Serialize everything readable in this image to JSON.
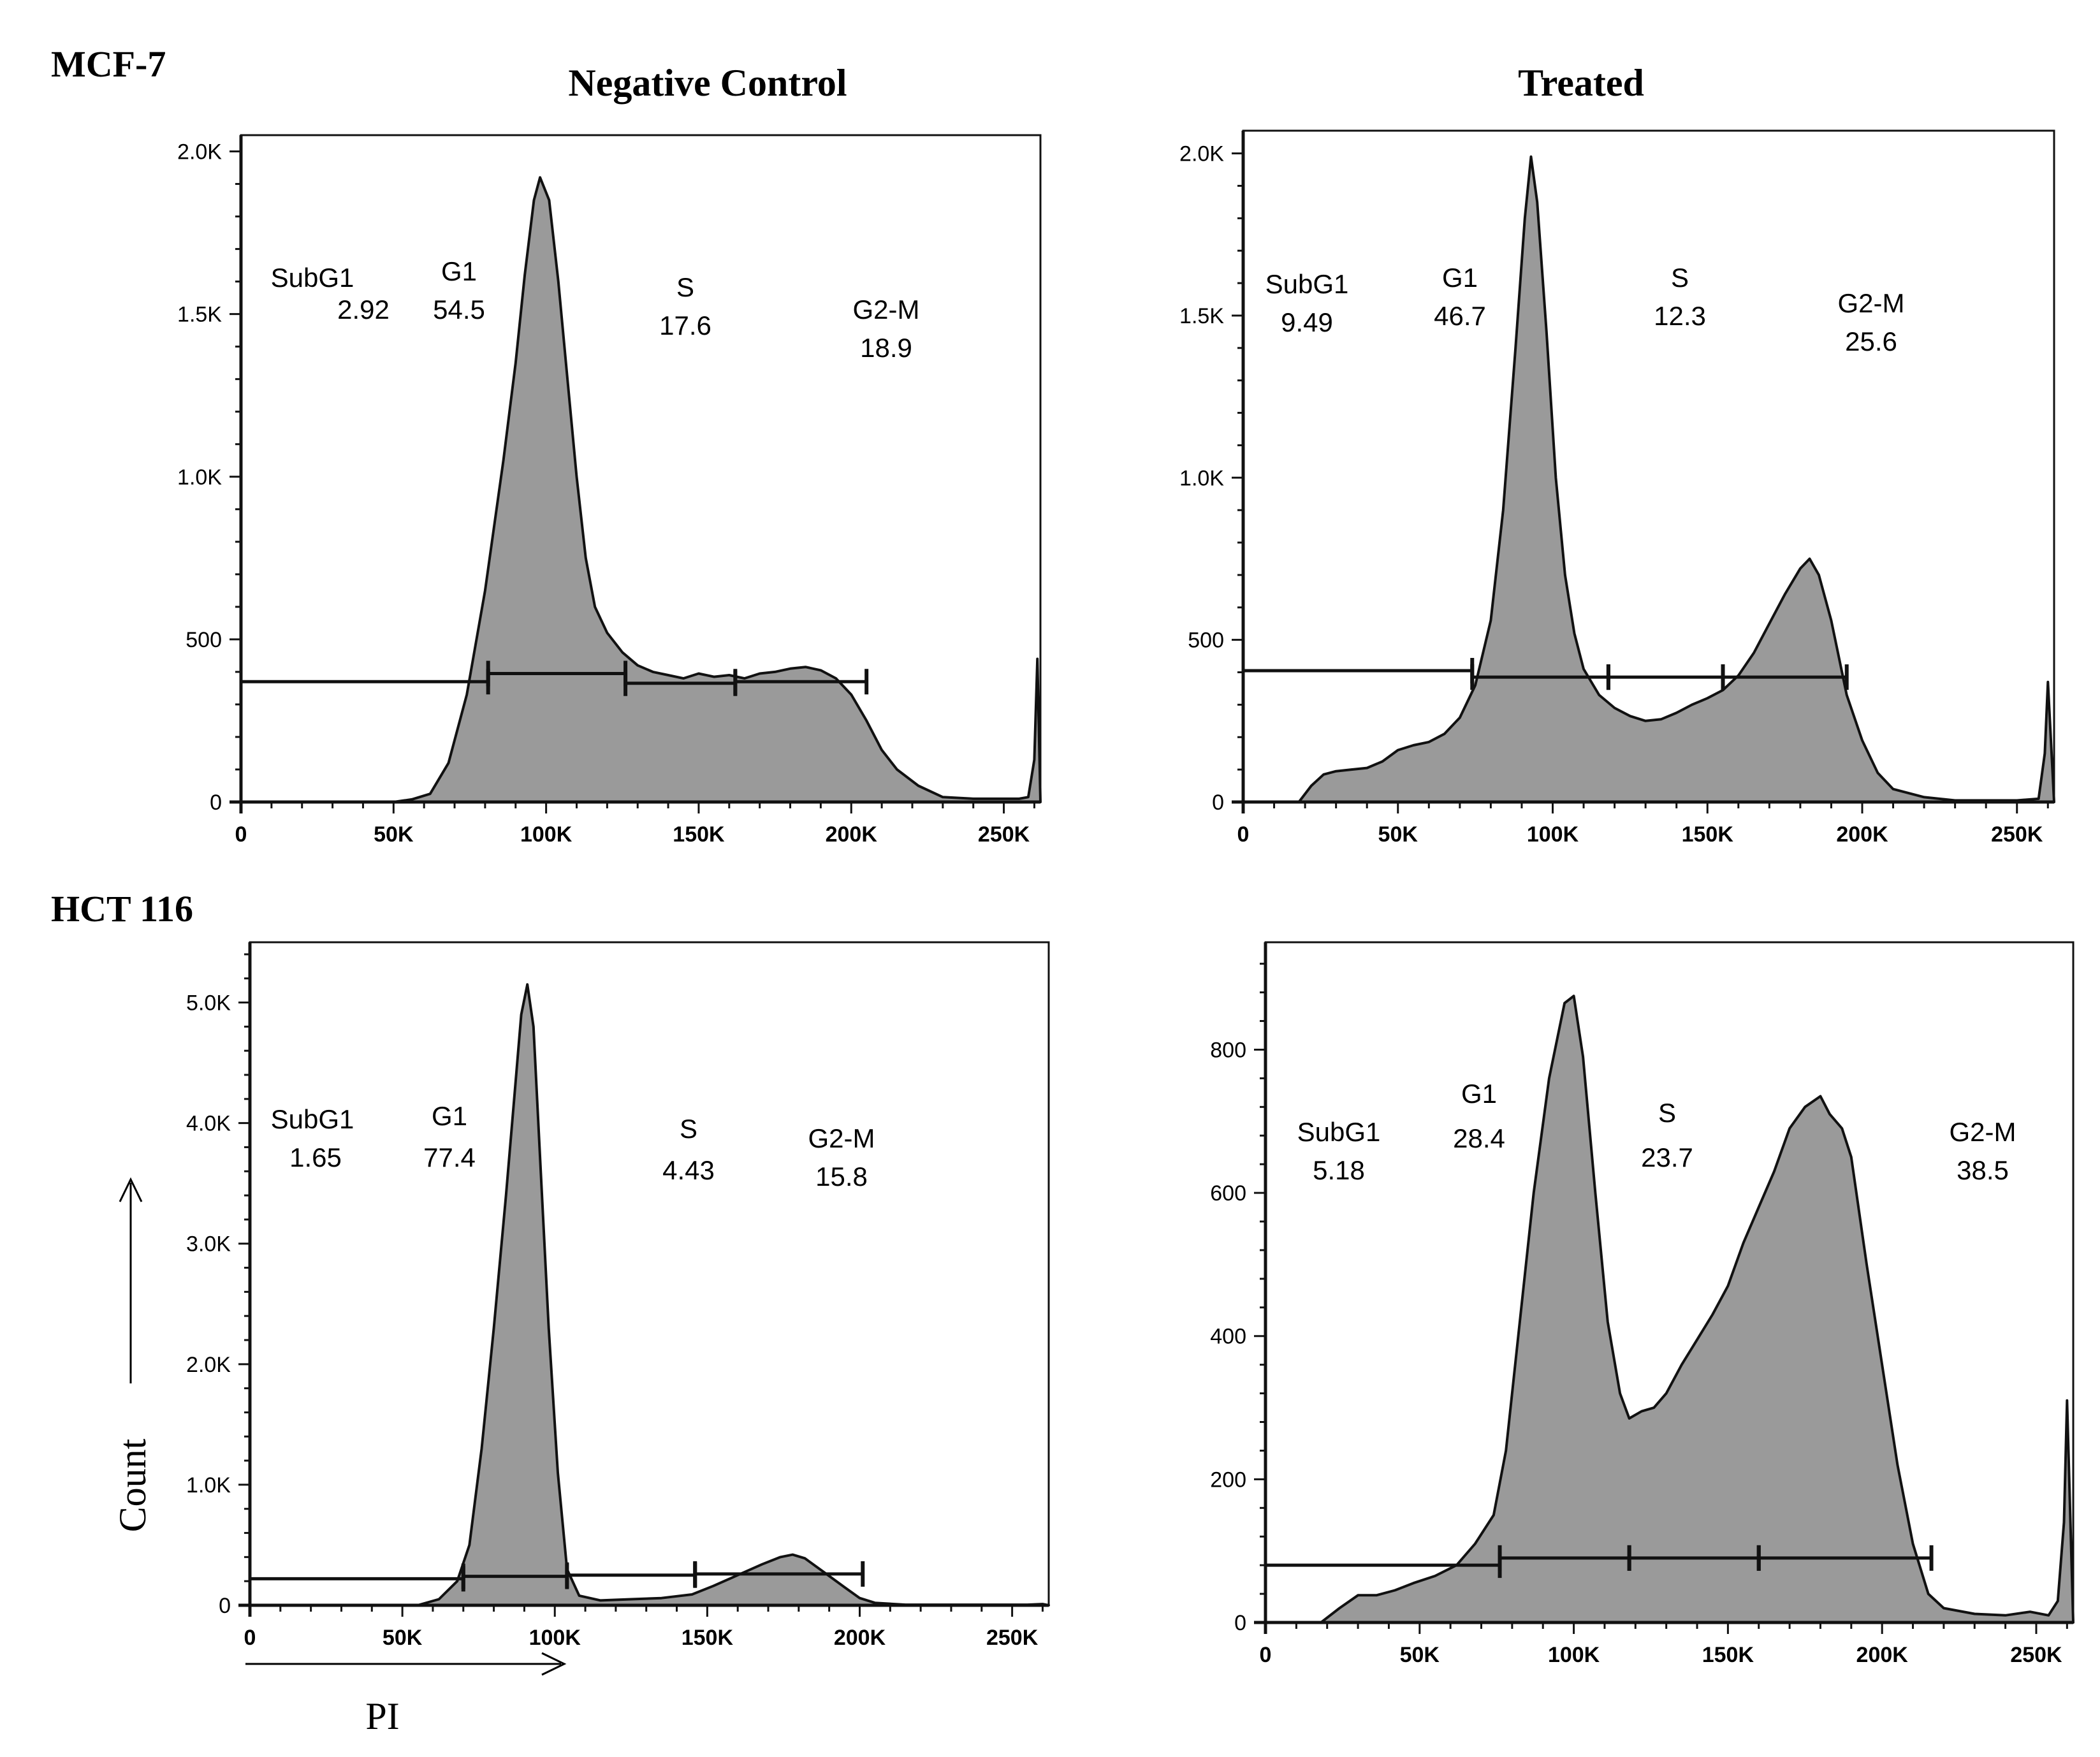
{
  "figure": {
    "row_labels": [
      "MCF-7",
      "HCT 116"
    ],
    "column_titles": [
      "Negative Control",
      "Treated"
    ],
    "y_axis_label": "Count",
    "x_axis_label": "PI"
  },
  "colors": {
    "fill": "#9a9a9a",
    "stroke": "#111111",
    "text": "#000000"
  },
  "chart_data": [
    {
      "type": "area",
      "cell_line": "MCF-7",
      "condition": "Negative Control",
      "xlim": [
        0,
        262000
      ],
      "ylim": [
        0,
        2050
      ],
      "x_ticks": [
        0,
        50000,
        100000,
        150000,
        200000,
        250000
      ],
      "x_tick_labels": [
        "0",
        "50K",
        "100K",
        "150K",
        "200K",
        "250K"
      ],
      "y_ticks": [
        0,
        500,
        1000,
        1500,
        2000
      ],
      "y_tick_labels": [
        "0",
        "500",
        "1.0K",
        "1.5K",
        "2.0K"
      ],
      "histogram": [
        [
          0,
          0
        ],
        [
          50000,
          0
        ],
        [
          56000,
          8
        ],
        [
          62000,
          25
        ],
        [
          68000,
          120
        ],
        [
          74000,
          330
        ],
        [
          80000,
          650
        ],
        [
          86000,
          1050
        ],
        [
          90000,
          1350
        ],
        [
          93000,
          1620
        ],
        [
          96000,
          1850
        ],
        [
          98000,
          1920
        ],
        [
          101000,
          1850
        ],
        [
          104000,
          1600
        ],
        [
          107000,
          1300
        ],
        [
          110000,
          1000
        ],
        [
          113000,
          750
        ],
        [
          116000,
          600
        ],
        [
          120000,
          520
        ],
        [
          125000,
          460
        ],
        [
          130000,
          420
        ],
        [
          135000,
          400
        ],
        [
          140000,
          390
        ],
        [
          145000,
          380
        ],
        [
          150000,
          395
        ],
        [
          155000,
          385
        ],
        [
          160000,
          390
        ],
        [
          165000,
          380
        ],
        [
          170000,
          395
        ],
        [
          175000,
          400
        ],
        [
          180000,
          410
        ],
        [
          185000,
          415
        ],
        [
          190000,
          405
        ],
        [
          195000,
          380
        ],
        [
          200000,
          330
        ],
        [
          205000,
          250
        ],
        [
          210000,
          160
        ],
        [
          215000,
          100
        ],
        [
          222000,
          50
        ],
        [
          230000,
          15
        ],
        [
          240000,
          10
        ],
        [
          255000,
          10
        ],
        [
          258000,
          15
        ],
        [
          260000,
          130
        ],
        [
          261000,
          440
        ],
        [
          262000,
          0
        ]
      ],
      "gates": [
        {
          "name": "SubG1",
          "value": "2.92",
          "range": [
            0,
            81000
          ],
          "y": 370
        },
        {
          "name": "G1",
          "value": "54.5",
          "range": [
            81000,
            126000
          ],
          "y": 395
        },
        {
          "name": "S",
          "value": "17.6",
          "range": [
            126000,
            162000
          ],
          "y": 365
        },
        {
          "name": "G2-M",
          "value": "18.9",
          "range": [
            162000,
            205000
          ],
          "y": 370
        }
      ]
    },
    {
      "type": "area",
      "cell_line": "MCF-7",
      "condition": "Treated",
      "xlim": [
        0,
        262000
      ],
      "ylim": [
        0,
        2070
      ],
      "x_ticks": [
        0,
        50000,
        100000,
        150000,
        200000,
        250000
      ],
      "x_tick_labels": [
        "0",
        "50K",
        "100K",
        "150K",
        "200K",
        "250K"
      ],
      "y_ticks": [
        0,
        500,
        1000,
        1500,
        2000
      ],
      "y_tick_labels": [
        "0",
        "500",
        "1.0K",
        "1.5K",
        "2.0K"
      ],
      "histogram": [
        [
          0,
          0
        ],
        [
          18000,
          0
        ],
        [
          22000,
          50
        ],
        [
          26000,
          85
        ],
        [
          30000,
          95
        ],
        [
          35000,
          100
        ],
        [
          40000,
          105
        ],
        [
          45000,
          125
        ],
        [
          50000,
          160
        ],
        [
          55000,
          175
        ],
        [
          60000,
          185
        ],
        [
          65000,
          210
        ],
        [
          70000,
          260
        ],
        [
          75000,
          360
        ],
        [
          80000,
          560
        ],
        [
          84000,
          900
        ],
        [
          88000,
          1400
        ],
        [
          91000,
          1800
        ],
        [
          93000,
          1990
        ],
        [
          95000,
          1850
        ],
        [
          98000,
          1450
        ],
        [
          101000,
          1000
        ],
        [
          104000,
          700
        ],
        [
          107000,
          520
        ],
        [
          110000,
          410
        ],
        [
          115000,
          330
        ],
        [
          120000,
          290
        ],
        [
          125000,
          265
        ],
        [
          130000,
          250
        ],
        [
          135000,
          255
        ],
        [
          140000,
          275
        ],
        [
          145000,
          300
        ],
        [
          150000,
          320
        ],
        [
          155000,
          345
        ],
        [
          160000,
          390
        ],
        [
          165000,
          460
        ],
        [
          170000,
          550
        ],
        [
          175000,
          640
        ],
        [
          180000,
          720
        ],
        [
          183000,
          750
        ],
        [
          186000,
          700
        ],
        [
          190000,
          560
        ],
        [
          195000,
          330
        ],
        [
          200000,
          190
        ],
        [
          205000,
          90
        ],
        [
          210000,
          40
        ],
        [
          220000,
          15
        ],
        [
          230000,
          5
        ],
        [
          250000,
          5
        ],
        [
          257000,
          10
        ],
        [
          259000,
          150
        ],
        [
          260000,
          370
        ],
        [
          262000,
          0
        ]
      ],
      "gates": [
        {
          "name": "SubG1",
          "value": "9.49",
          "range": [
            0,
            74000
          ],
          "y": 405
        },
        {
          "name": "G1",
          "value": "46.7",
          "range": [
            74000,
            118000
          ],
          "y": 385
        },
        {
          "name": "S",
          "value": "12.3",
          "range": [
            118000,
            155000
          ],
          "y": 385
        },
        {
          "name": "G2-M",
          "value": "25.6",
          "range": [
            155000,
            195000
          ],
          "y": 385
        }
      ]
    },
    {
      "type": "area",
      "cell_line": "HCT 116",
      "condition": "Negative Control",
      "xlim": [
        0,
        262000
      ],
      "ylim": [
        0,
        5500
      ],
      "x_ticks": [
        0,
        50000,
        100000,
        150000,
        200000,
        250000
      ],
      "x_tick_labels": [
        "0",
        "50K",
        "100K",
        "150K",
        "200K",
        "250K"
      ],
      "y_ticks": [
        0,
        1000,
        2000,
        3000,
        4000,
        5000
      ],
      "y_tick_labels": [
        "0",
        "1.0K",
        "2.0K",
        "3.0K",
        "4.0K",
        "5.0K"
      ],
      "histogram": [
        [
          0,
          0
        ],
        [
          55000,
          0
        ],
        [
          62000,
          50
        ],
        [
          68000,
          200
        ],
        [
          72000,
          500
        ],
        [
          76000,
          1300
        ],
        [
          80000,
          2300
        ],
        [
          84000,
          3400
        ],
        [
          87000,
          4300
        ],
        [
          89000,
          4900
        ],
        [
          91000,
          5150
        ],
        [
          93000,
          4800
        ],
        [
          95000,
          3800
        ],
        [
          98000,
          2300
        ],
        [
          101000,
          1100
        ],
        [
          104000,
          300
        ],
        [
          108000,
          80
        ],
        [
          115000,
          40
        ],
        [
          125000,
          50
        ],
        [
          135000,
          60
        ],
        [
          145000,
          90
        ],
        [
          152000,
          160
        ],
        [
          160000,
          250
        ],
        [
          168000,
          340
        ],
        [
          174000,
          400
        ],
        [
          178000,
          420
        ],
        [
          182000,
          390
        ],
        [
          188000,
          280
        ],
        [
          195000,
          150
        ],
        [
          200000,
          60
        ],
        [
          205000,
          20
        ],
        [
          215000,
          5
        ],
        [
          230000,
          5
        ],
        [
          255000,
          5
        ],
        [
          260000,
          10
        ],
        [
          262000,
          0
        ]
      ],
      "gates": [
        {
          "name": "SubG1",
          "value": "1.65",
          "range": [
            0,
            70000
          ],
          "y": 220
        },
        {
          "name": "G1",
          "value": "77.4",
          "range": [
            70000,
            104000
          ],
          "y": 240
        },
        {
          "name": "S",
          "value": "4.43",
          "range": [
            104000,
            146000
          ],
          "y": 250
        },
        {
          "name": "G2-M",
          "value": "15.8",
          "range": [
            146000,
            201000
          ],
          "y": 260
        }
      ]
    },
    {
      "type": "area",
      "cell_line": "HCT 116",
      "condition": "Treated",
      "xlim": [
        0,
        262000
      ],
      "ylim": [
        0,
        950
      ],
      "x_ticks": [
        0,
        50000,
        100000,
        150000,
        200000,
        250000
      ],
      "x_tick_labels": [
        "0",
        "50K",
        "100K",
        "150K",
        "200K",
        "250K"
      ],
      "y_ticks": [
        0,
        200,
        400,
        600,
        800
      ],
      "y_tick_labels": [
        "0",
        "200",
        "400",
        "600",
        "800"
      ],
      "histogram": [
        [
          0,
          0
        ],
        [
          18000,
          0
        ],
        [
          24000,
          20
        ],
        [
          30000,
          38
        ],
        [
          36000,
          38
        ],
        [
          42000,
          45
        ],
        [
          48000,
          55
        ],
        [
          55000,
          65
        ],
        [
          62000,
          80
        ],
        [
          68000,
          110
        ],
        [
          74000,
          150
        ],
        [
          78000,
          240
        ],
        [
          82000,
          400
        ],
        [
          87000,
          600
        ],
        [
          92000,
          760
        ],
        [
          97000,
          865
        ],
        [
          100000,
          875
        ],
        [
          103000,
          790
        ],
        [
          107000,
          600
        ],
        [
          111000,
          420
        ],
        [
          115000,
          320
        ],
        [
          118000,
          285
        ],
        [
          122000,
          295
        ],
        [
          126000,
          300
        ],
        [
          130000,
          320
        ],
        [
          135000,
          360
        ],
        [
          140000,
          395
        ],
        [
          145000,
          430
        ],
        [
          150000,
          470
        ],
        [
          155000,
          530
        ],
        [
          160000,
          580
        ],
        [
          165000,
          630
        ],
        [
          170000,
          690
        ],
        [
          175000,
          720
        ],
        [
          180000,
          735
        ],
        [
          183000,
          710
        ],
        [
          187000,
          690
        ],
        [
          190000,
          650
        ],
        [
          195000,
          500
        ],
        [
          200000,
          360
        ],
        [
          205000,
          220
        ],
        [
          210000,
          110
        ],
        [
          215000,
          40
        ],
        [
          220000,
          20
        ],
        [
          230000,
          12
        ],
        [
          240000,
          10
        ],
        [
          248000,
          15
        ],
        [
          254000,
          10
        ],
        [
          257000,
          30
        ],
        [
          259000,
          140
        ],
        [
          260000,
          310
        ],
        [
          262000,
          0
        ]
      ],
      "gates": [
        {
          "name": "SubG1",
          "value": "5.18",
          "range": [
            0,
            76000
          ],
          "y": 80
        },
        {
          "name": "G1",
          "value": "28.4",
          "range": [
            76000,
            118000
          ],
          "y": 90
        },
        {
          "name": "S",
          "value": "23.7",
          "range": [
            118000,
            160000
          ],
          "y": 90
        },
        {
          "name": "G2-M",
          "value": "38.5",
          "range": [
            160000,
            216000
          ],
          "y": 90
        }
      ]
    }
  ]
}
